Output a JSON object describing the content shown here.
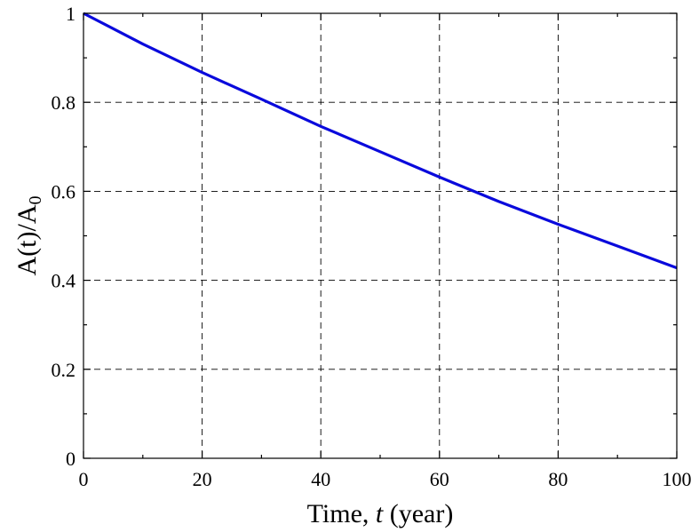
{
  "chart_data": {
    "type": "line",
    "title": "",
    "xlabel": {
      "prefix": "Time, ",
      "variable": "t",
      "suffix": " (year)"
    },
    "ylabel": {
      "main": "A(t)/A",
      "subscript": "0"
    },
    "xlim": [
      0,
      100
    ],
    "ylim": [
      0,
      1
    ],
    "xticks": [
      0,
      20,
      40,
      60,
      80,
      100
    ],
    "yticks": [
      0,
      0.2,
      0.4,
      0.6,
      0.8,
      1
    ],
    "xtick_labels": [
      "0",
      "20",
      "40",
      "60",
      "80",
      "100"
    ],
    "ytick_labels": [
      "0",
      "0.2",
      "0.4",
      "0.6",
      "0.8",
      "1"
    ],
    "grid": true,
    "grid_style": "dashed",
    "series": [
      {
        "color": "#0a0adc",
        "x": [
          0,
          10,
          20,
          30,
          40,
          50,
          60,
          70,
          80,
          90,
          100
        ],
        "y": [
          1.0,
          0.931,
          0.867,
          0.807,
          0.746,
          0.689,
          0.632,
          0.577,
          0.526,
          0.477,
          0.428
        ]
      }
    ]
  }
}
